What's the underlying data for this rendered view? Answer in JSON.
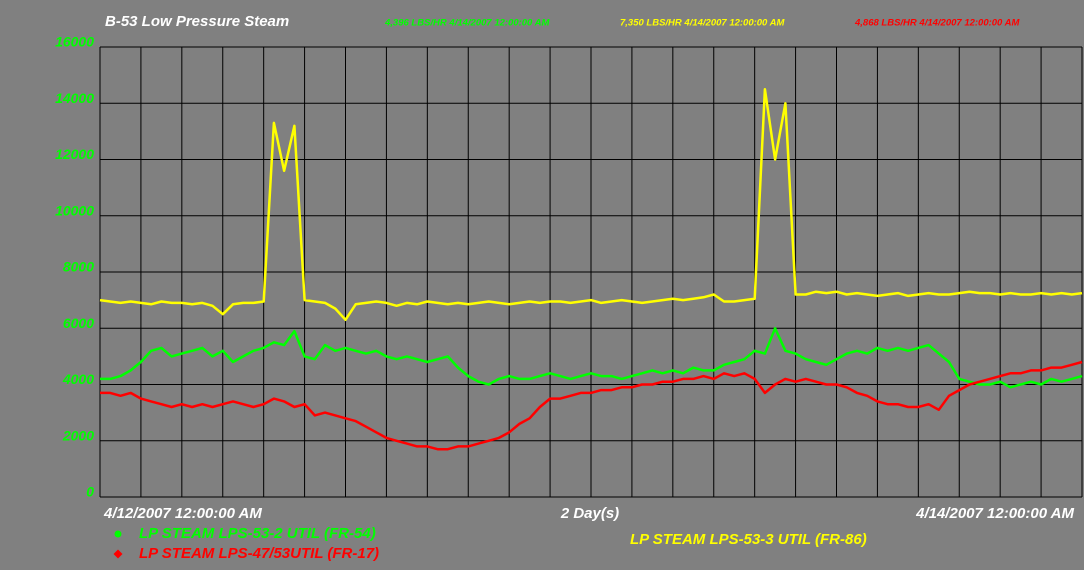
{
  "chart_data": {
    "type": "line",
    "title": "B-53 Low Pressure Steam",
    "span_label": "2 Day(s)",
    "categories": [
      "4/12/2007 12:00:00 AM",
      null,
      null,
      null,
      null,
      null,
      null,
      null,
      null,
      null,
      null,
      null,
      null,
      null,
      null,
      null,
      null,
      null,
      null,
      null,
      null,
      null,
      null,
      null,
      null,
      null,
      null,
      null,
      null,
      null,
      null,
      null,
      null,
      null,
      null,
      null,
      null,
      null,
      null,
      null,
      null,
      null,
      null,
      null,
      null,
      null,
      null,
      null,
      null,
      null,
      null,
      null,
      null,
      null,
      null,
      null,
      null,
      null,
      null,
      null,
      null,
      null,
      null,
      null,
      null,
      null,
      null,
      null,
      null,
      null,
      null,
      null,
      null,
      null,
      null,
      null,
      null,
      null,
      null,
      null,
      null,
      null,
      null,
      null,
      null,
      null,
      null,
      null,
      null,
      null,
      null,
      null,
      null,
      null,
      null,
      null,
      "4/14/2007 12:00:00 AM"
    ],
    "ylim": [
      0,
      16000
    ],
    "yticks": [
      0,
      2000,
      4000,
      6000,
      8000,
      10000,
      12000,
      14000,
      16000
    ],
    "grid": true,
    "series": [
      {
        "name": "LP STEAM LPS-53-2 UTIL (FR-54)",
        "color": "#00ff00",
        "marker": "circle",
        "current_label": "4,396 LBS/HR 4/14/2007 12:00:00 AM",
        "values": [
          4200,
          4200,
          4300,
          4500,
          4800,
          5200,
          5300,
          5000,
          5100,
          5200,
          5300,
          5000,
          5200,
          4800,
          5000,
          5200,
          5300,
          5500,
          5400,
          5900,
          5000,
          4900,
          5400,
          5200,
          5300,
          5200,
          5100,
          5200,
          5000,
          4900,
          5000,
          4900,
          4800,
          4900,
          5000,
          4600,
          4300,
          4100,
          4000,
          4200,
          4300,
          4200,
          4200,
          4300,
          4400,
          4300,
          4200,
          4300,
          4400,
          4300,
          4300,
          4200,
          4300,
          4400,
          4500,
          4400,
          4500,
          4400,
          4600,
          4500,
          4500,
          4700,
          4800,
          4900,
          5200,
          5100,
          6000,
          5200,
          5100,
          4900,
          4800,
          4700,
          4900,
          5100,
          5200,
          5100,
          5300,
          5200,
          5300,
          5200,
          5300,
          5400,
          5100,
          4800,
          4200,
          4100,
          4000,
          4000,
          4100,
          3900,
          4000,
          4100,
          4000,
          4200,
          4100,
          4200,
          4300
        ]
      },
      {
        "name": "LP STEAM LPS-53-3 UTIL (FR-86)",
        "color": "#ffff00",
        "current_label": "7,350 LBS/HR 4/14/2007 12:00:00 AM",
        "values": [
          7000,
          6950,
          6900,
          6950,
          6900,
          6850,
          6950,
          6900,
          6900,
          6850,
          6900,
          6800,
          6500,
          6850,
          6900,
          6900,
          6950,
          13300,
          11600,
          13200,
          7000,
          6950,
          6900,
          6700,
          6300,
          6850,
          6900,
          6950,
          6900,
          6800,
          6900,
          6850,
          6950,
          6900,
          6850,
          6900,
          6850,
          6900,
          6950,
          6900,
          6850,
          6900,
          6950,
          6900,
          6950,
          6950,
          6900,
          6950,
          7000,
          6900,
          6950,
          7000,
          6950,
          6900,
          6950,
          7000,
          7050,
          7000,
          7050,
          7100,
          7200,
          6950,
          6950,
          7000,
          7050,
          14500,
          12000,
          14000,
          7200,
          7200,
          7300,
          7250,
          7300,
          7200,
          7250,
          7200,
          7150,
          7200,
          7250,
          7150,
          7200,
          7250,
          7200,
          7200,
          7250,
          7300,
          7250,
          7250,
          7200,
          7250,
          7200,
          7200,
          7250,
          7200,
          7250,
          7200,
          7250
        ]
      },
      {
        "name": "LP STEAM LPS-47/53UTIL (FR-17)",
        "color": "#ff0000",
        "marker": "diamond",
        "current_label": "4,868 LBS/HR 4/14/2007 12:00:00 AM",
        "values": [
          3700,
          3700,
          3600,
          3700,
          3500,
          3400,
          3300,
          3200,
          3300,
          3200,
          3300,
          3200,
          3300,
          3400,
          3300,
          3200,
          3300,
          3500,
          3400,
          3200,
          3300,
          2900,
          3000,
          2900,
          2800,
          2700,
          2500,
          2300,
          2100,
          2000,
          1900,
          1800,
          1800,
          1700,
          1700,
          1800,
          1800,
          1900,
          2000,
          2100,
          2300,
          2600,
          2800,
          3200,
          3500,
          3500,
          3600,
          3700,
          3700,
          3800,
          3800,
          3900,
          3900,
          4000,
          4000,
          4100,
          4100,
          4200,
          4200,
          4300,
          4200,
          4400,
          4300,
          4400,
          4200,
          3700,
          4000,
          4200,
          4100,
          4200,
          4100,
          4000,
          4000,
          3900,
          3700,
          3600,
          3400,
          3300,
          3300,
          3200,
          3200,
          3300,
          3100,
          3600,
          3800,
          4000,
          4100,
          4200,
          4300,
          4400,
          4400,
          4500,
          4500,
          4600,
          4600,
          4700,
          4800
        ]
      }
    ]
  }
}
